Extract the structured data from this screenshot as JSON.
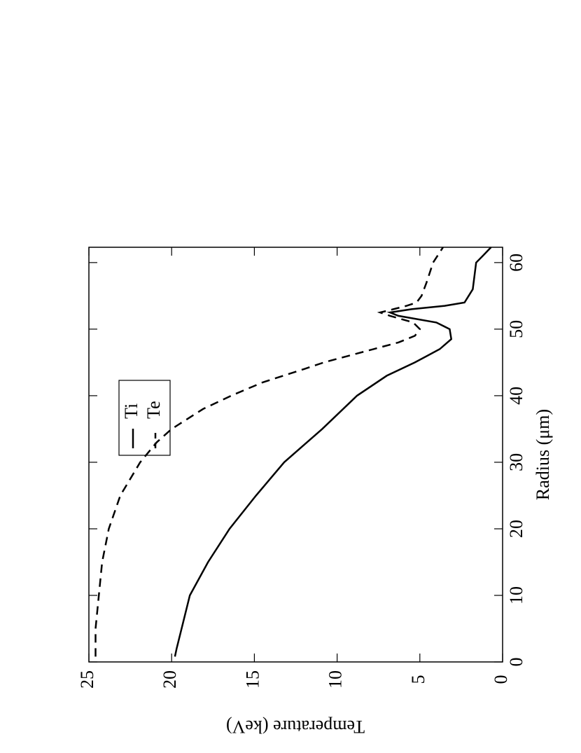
{
  "chart_data": {
    "type": "line",
    "x_label": "Radius (μm)",
    "y_label": "Temperature (keV)",
    "xlim": [
      0,
      62.3
    ],
    "ylim": [
      0,
      25
    ],
    "xticks": [
      0,
      10,
      20,
      30,
      40,
      50,
      60
    ],
    "yticks": [
      0,
      5,
      10,
      15,
      20,
      25
    ],
    "rotation": -90,
    "series": [
      {
        "name": "Ti",
        "color": "#000000",
        "dash": "solid",
        "x": [
          0.8,
          2,
          5,
          10,
          15,
          20,
          25,
          30,
          35,
          40,
          43,
          45,
          47,
          48.5,
          50,
          51,
          52,
          52.5,
          53,
          53.5,
          54,
          56,
          60,
          61,
          62.3
        ],
        "values": [
          19.8,
          19.7,
          19.4,
          18.9,
          17.8,
          16.5,
          14.9,
          13.2,
          10.9,
          8.8,
          7.0,
          5.3,
          3.8,
          3.1,
          3.2,
          4.0,
          6.3,
          6.8,
          5.5,
          3.5,
          2.3,
          1.8,
          1.6,
          1.2,
          0.7
        ]
      },
      {
        "name": "Te",
        "color": "#000000",
        "dash": "dashed",
        "x": [
          0.8,
          5,
          10,
          15,
          20,
          25,
          30,
          33,
          35,
          38,
          40,
          42,
          44,
          45,
          46,
          47,
          48,
          49,
          50,
          51,
          52,
          52.5,
          53,
          53.5,
          54,
          55,
          57,
          60,
          62.3
        ],
        "values": [
          24.6,
          24.6,
          24.4,
          24.2,
          23.8,
          23.1,
          21.9,
          20.9,
          20.0,
          18.1,
          16.4,
          14.5,
          12.0,
          10.8,
          9.3,
          7.8,
          6.3,
          5.3,
          5.0,
          5.4,
          6.8,
          7.4,
          6.6,
          5.8,
          5.2,
          4.9,
          4.6,
          4.2,
          3.6
        ]
      }
    ]
  }
}
